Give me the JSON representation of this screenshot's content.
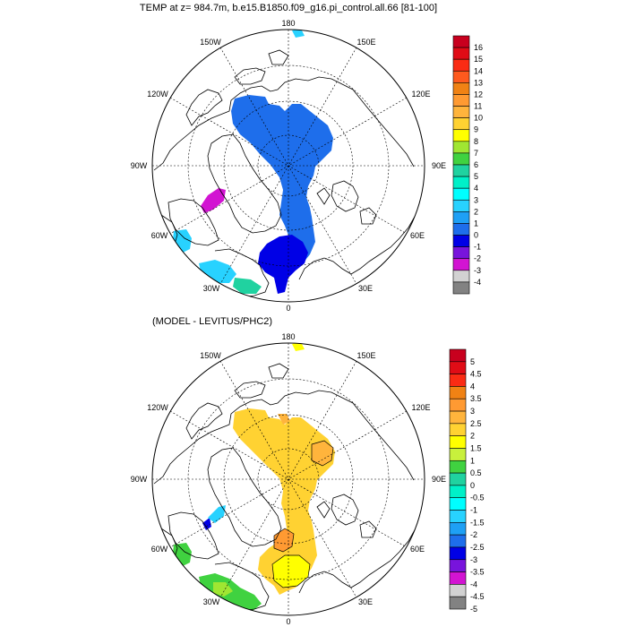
{
  "panels": [
    {
      "id": "top",
      "title": "TEMP at z= 984.7m, b.e15.B1850.f09_g16.pi_control.all.66 [81-100]",
      "lon_labels": {
        "n": "180",
        "nne": "150E",
        "ene": "120E",
        "e": "90E",
        "ese": "60E",
        "sse": "30E",
        "s": "0",
        "ssw": "30W",
        "wsw": "60W",
        "w": "90W",
        "wnw": "120W",
        "nnw": "150W"
      },
      "colorbar": {
        "labels": [
          "16",
          "15",
          "14",
          "13",
          "12",
          "11",
          "10",
          "9",
          "8",
          "7",
          "6",
          "5",
          "4",
          "3",
          "2",
          "1",
          "0",
          "-1",
          "-2",
          "-3",
          "-4"
        ],
        "colors": [
          "#c8001e",
          "#e00c16",
          "#fa2c14",
          "#ff5a1e",
          "#f08214",
          "#ff9a32",
          "#ffb43c",
          "#ffd232",
          "#ffff00",
          "#a0e632",
          "#40d240",
          "#20d2a0",
          "#00f0c8",
          "#00ffff",
          "#28d2ff",
          "#1ea0f5",
          "#1e6eeb",
          "#0000e6",
          "#7814dc",
          "#d214d2",
          "#d2d2d2",
          "#828282"
        ]
      }
    },
    {
      "id": "bottom",
      "title": "(MODEL - LEVITUS/PHC2)",
      "lon_labels": {
        "n": "180",
        "nne": "150E",
        "ene": "120E",
        "e": "90E",
        "ese": "60E",
        "sse": "30E",
        "s": "0",
        "ssw": "30W",
        "wsw": "60W",
        "w": "90W",
        "wnw": "120W",
        "nnw": "150W"
      },
      "colorbar": {
        "labels": [
          "5",
          "4.5",
          "4",
          "3.5",
          "3",
          "2.5",
          "2",
          "1.5",
          "1",
          "0.5",
          "0",
          "-0.5",
          "-1",
          "-1.5",
          "-2",
          "-2.5",
          "-3",
          "-3.5",
          "-4",
          "-4.5",
          "-5"
        ],
        "colors": [
          "#c8001e",
          "#e00c16",
          "#fa2c14",
          "#f08214",
          "#ff9a32",
          "#ffb43c",
          "#ffd232",
          "#ffff00",
          "#c8f03c",
          "#40d240",
          "#20d2a0",
          "#00f0c8",
          "#00ffff",
          "#28d2ff",
          "#1ea0f5",
          "#1e6eeb",
          "#0000e6",
          "#7814dc",
          "#d214d2",
          "#d2d2d2",
          "#828282"
        ]
      }
    }
  ],
  "legend_colors": {
    "top_main": "#1e6eeb",
    "top_deep": "#0000e6",
    "top_magenta": "#d214d2",
    "top_cyan": "#28d2ff",
    "top_teal": "#20d2a0",
    "bottom_main": "#ffd232",
    "bottom_orange": "#ffb43c",
    "bottom_darkorange": "#ff9a32",
    "bottom_yellow": "#ffff00",
    "bottom_green": "#40d240",
    "bottom_lightgreen": "#a0e632"
  }
}
